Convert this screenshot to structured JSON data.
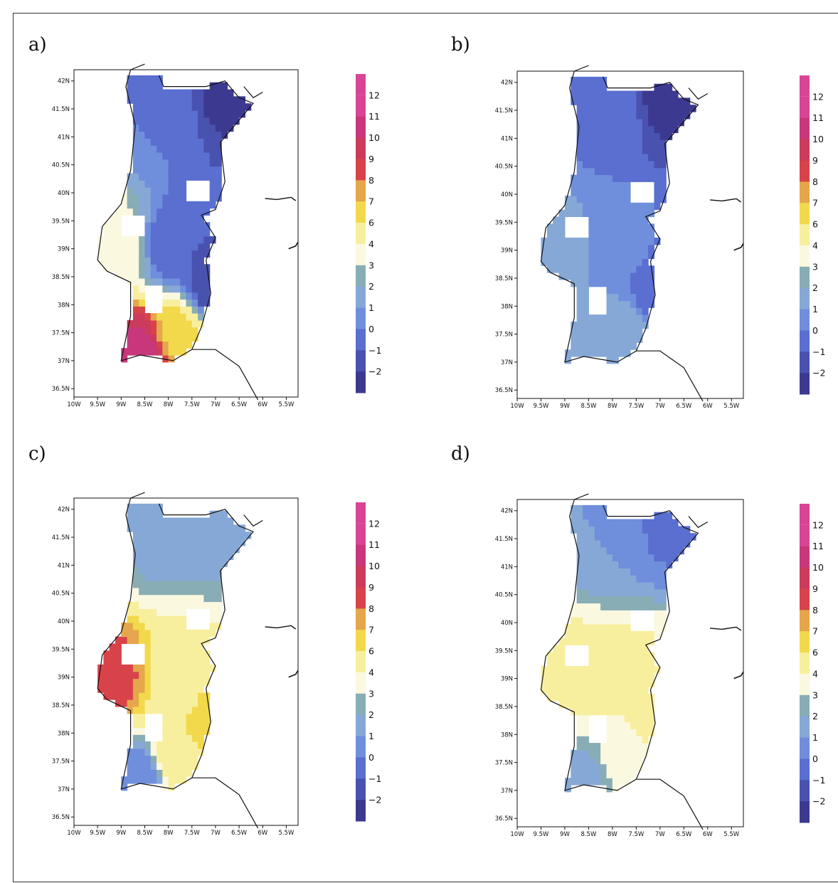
{
  "colors": {
    "levels": [
      "-2",
      "-1",
      "0",
      "1",
      "2",
      "3",
      "4",
      "6",
      "7",
      "8",
      "9",
      "10",
      "11",
      "12"
    ],
    "bins": [
      "#3c3a90",
      "#4a52b0",
      "#5a6fd0",
      "#6f8fdc",
      "#86a8d6",
      "#88adb5",
      "#fbf8e0",
      "#f8ef9e",
      "#f2d94c",
      "#e5a64c",
      "#d8434a",
      "#cc3b5b",
      "#c8377b",
      "#d84596"
    ]
  },
  "x_tick_labels": [
    "10W",
    "9.5W",
    "9W",
    "8.5W",
    "8W",
    "7.5W",
    "7W",
    "6.5W",
    "6W",
    "5.5W"
  ],
  "y_tick_labels": [
    "42N",
    "41.5N",
    "41N",
    "40.5N",
    "40N",
    "39.5N",
    "39N",
    "38.5N",
    "38N",
    "37.5N",
    "37N",
    "36.5N"
  ],
  "colorbar_labels": [
    "12",
    "11",
    "10",
    "9",
    "8",
    "7",
    "6",
    "4",
    "3",
    "2",
    "1",
    "0",
    "−1",
    "−2"
  ],
  "panels": [
    {
      "label": "a)",
      "field": {
        "north": 0.5,
        "north_east": -1.8,
        "center": -0.5,
        "east": -1.5,
        "south_west": 11.0,
        "south_center": 7.0,
        "west_coast": 4.5
      }
    },
    {
      "label": "b)",
      "field": {
        "north": 0.3,
        "north_east": -2.0,
        "center": 0.8,
        "east": -0.5,
        "south_west": 2.0,
        "south_center": 2.4,
        "west_coast": 2.0
      }
    },
    {
      "label": "c)",
      "field": {
        "north": 2.2,
        "north_east": 1.8,
        "center": 5.5,
        "east": 7.0,
        "south_west": 0.5,
        "south_center": 6.5,
        "west_coast": 9.0
      }
    },
    {
      "label": "d)",
      "field": {
        "north": 1.5,
        "north_east": 0.2,
        "center": 5.5,
        "east": 5.5,
        "south_west": 2.0,
        "south_center": 4.0,
        "west_coast": 6.2
      }
    }
  ]
}
